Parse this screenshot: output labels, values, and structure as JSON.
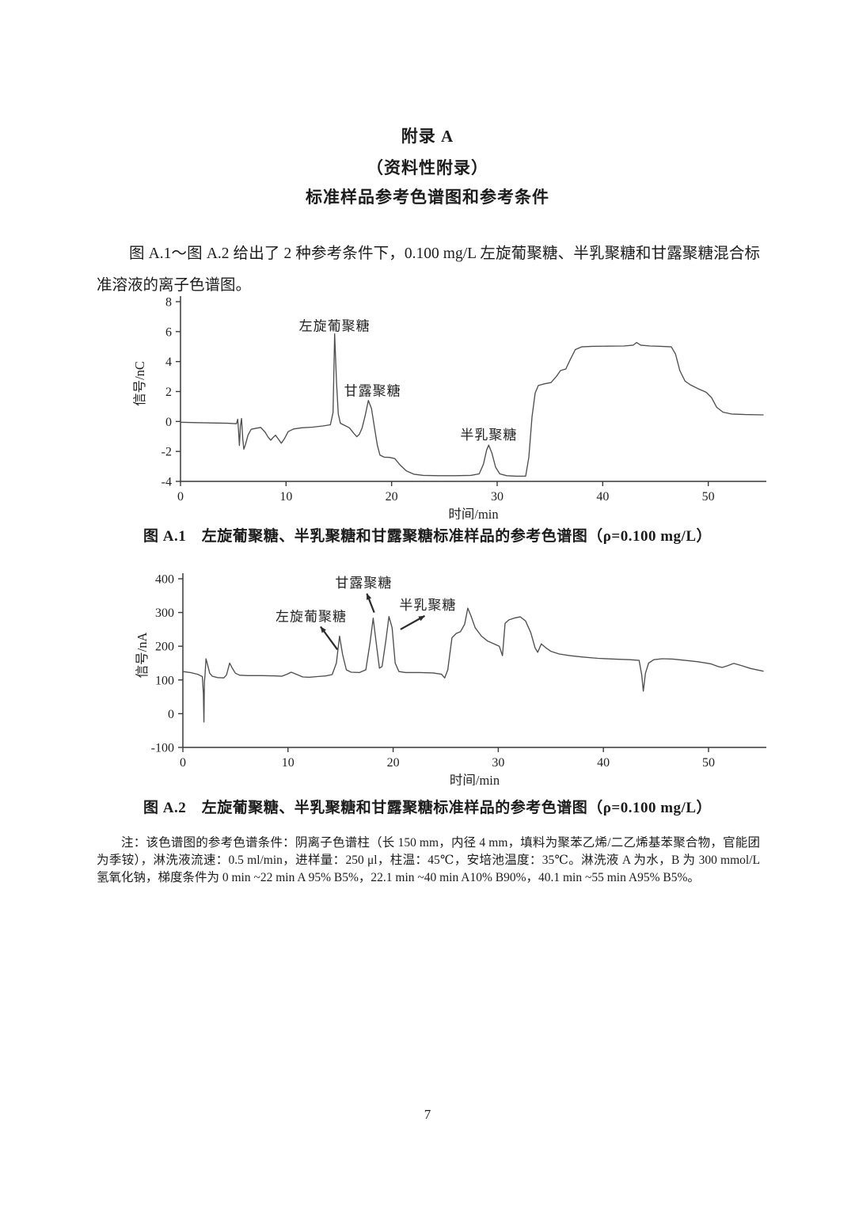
{
  "header": {
    "appendix_label": "附录 A",
    "appendix_note": "（资料性附录）",
    "title": "标准样品参考色谱图和参考条件"
  },
  "intro_paragraph": "图 A.1～图 A.2 给出了 2 种参考条件下，0.100 mg/L 左旋葡聚糖、半乳聚糖和甘露聚糖混合标准溶液的离子色谱图。",
  "figure_a1": {
    "caption": "图 A.1　左旋葡聚糖、半乳聚糖和甘露聚糖标准样品的参考色谱图（ρ=0.100 mg/L）"
  },
  "figure_a2": {
    "caption": "图 A.2　左旋葡聚糖、半乳聚糖和甘露聚糖标准样品的参考色谱图（ρ=0.100 mg/L）"
  },
  "note_text": "注：该色谱图的参考色谱条件：阴离子色谱柱（长 150 mm，内径 4 mm，填料为聚苯乙烯/二乙烯基苯聚合物，官能团为季铵），淋洗液流速：0.5 ml/min，进样量：250 μl，柱温：45℃，安培池温度：35℃。淋洗液 A 为水，B 为 300 mmol/L 氢氧化钠，梯度条件为 0 min ~22 min A 95% B5%，22.1 min ~40 min A10% B90%，40.1 min ~55 min A95% B5%。",
  "page_number": "7",
  "colors": {
    "curve": "#4f4f4f",
    "axis": "#3a3a3a",
    "annotation": "#2b2b2b"
  },
  "chart_data": [
    {
      "id": "a1",
      "type": "line",
      "title": "",
      "xlabel": "时间/min",
      "ylabel": "信号/nC",
      "xlim": [
        0,
        55.5
      ],
      "ylim": [
        -4,
        8
      ],
      "xticks": [
        0,
        10,
        20,
        30,
        40,
        50
      ],
      "yticks": [
        8,
        6,
        4,
        2,
        0,
        -2,
        -4
      ],
      "grid": false,
      "legend": null,
      "annotations": [
        {
          "label": "左旋葡聚糖",
          "x": 14.6,
          "y": 6.4,
          "arrow": null
        },
        {
          "label": "甘露聚糖",
          "x": 18.2,
          "y": 2.05,
          "arrow": null
        },
        {
          "label": "半乳聚糖",
          "x": 29.2,
          "y": -0.88,
          "arrow": null
        }
      ],
      "points": [
        [
          0,
          -0.05
        ],
        [
          1.5,
          -0.08
        ],
        [
          3,
          -0.1
        ],
        [
          4.5,
          -0.12
        ],
        [
          5.3,
          -0.15
        ],
        [
          5.42,
          0.15
        ],
        [
          5.5,
          -0.6
        ],
        [
          5.58,
          -1.6
        ],
        [
          5.68,
          -0.3
        ],
        [
          5.78,
          0.2
        ],
        [
          5.9,
          -1.2
        ],
        [
          6.0,
          -1.85
        ],
        [
          6.15,
          -1.55
        ],
        [
          6.4,
          -0.9
        ],
        [
          6.7,
          -0.52
        ],
        [
          7.2,
          -0.45
        ],
        [
          7.6,
          -0.4
        ],
        [
          8.0,
          -0.7
        ],
        [
          8.3,
          -1.05
        ],
        [
          8.55,
          -1.25
        ],
        [
          8.8,
          -1.05
        ],
        [
          9.0,
          -0.92
        ],
        [
          9.25,
          -1.15
        ],
        [
          9.55,
          -1.45
        ],
        [
          9.85,
          -1.15
        ],
        [
          10.2,
          -0.68
        ],
        [
          10.7,
          -0.5
        ],
        [
          11.5,
          -0.42
        ],
        [
          12.5,
          -0.38
        ],
        [
          13.5,
          -0.3
        ],
        [
          14.2,
          -0.22
        ],
        [
          14.45,
          0.6
        ],
        [
          14.6,
          5.85
        ],
        [
          14.78,
          2.6
        ],
        [
          14.95,
          0.5
        ],
        [
          15.15,
          -0.12
        ],
        [
          15.6,
          -0.28
        ],
        [
          16.0,
          -0.42
        ],
        [
          16.4,
          -0.78
        ],
        [
          16.7,
          -1.02
        ],
        [
          16.95,
          -0.85
        ],
        [
          17.2,
          -0.45
        ],
        [
          17.5,
          0.4
        ],
        [
          17.8,
          1.4
        ],
        [
          18.1,
          0.85
        ],
        [
          18.4,
          -0.5
        ],
        [
          18.65,
          -1.6
        ],
        [
          18.9,
          -2.25
        ],
        [
          19.3,
          -2.38
        ],
        [
          19.8,
          -2.4
        ],
        [
          20.3,
          -2.48
        ],
        [
          20.8,
          -2.9
        ],
        [
          21.4,
          -3.3
        ],
        [
          22.1,
          -3.52
        ],
        [
          23.0,
          -3.6
        ],
        [
          24.5,
          -3.62
        ],
        [
          26.0,
          -3.62
        ],
        [
          27.5,
          -3.6
        ],
        [
          28.3,
          -3.5
        ],
        [
          28.7,
          -2.85
        ],
        [
          29.0,
          -1.9
        ],
        [
          29.2,
          -1.58
        ],
        [
          29.5,
          -2.1
        ],
        [
          29.85,
          -3.05
        ],
        [
          30.25,
          -3.5
        ],
        [
          30.9,
          -3.62
        ],
        [
          31.8,
          -3.65
        ],
        [
          32.7,
          -3.65
        ],
        [
          33.0,
          -2.4
        ],
        [
          33.3,
          0.3
        ],
        [
          33.6,
          1.9
        ],
        [
          33.9,
          2.4
        ],
        [
          34.5,
          2.52
        ],
        [
          35.1,
          2.6
        ],
        [
          35.6,
          3.0
        ],
        [
          36.0,
          3.4
        ],
        [
          36.5,
          3.5
        ],
        [
          36.9,
          4.1
        ],
        [
          37.4,
          4.8
        ],
        [
          38.0,
          4.98
        ],
        [
          39.0,
          5.02
        ],
        [
          40.5,
          5.03
        ],
        [
          42.0,
          5.04
        ],
        [
          42.9,
          5.1
        ],
        [
          43.2,
          5.27
        ],
        [
          43.6,
          5.1
        ],
        [
          44.5,
          5.04
        ],
        [
          45.5,
          5.02
        ],
        [
          46.5,
          4.98
        ],
        [
          46.9,
          4.5
        ],
        [
          47.3,
          3.4
        ],
        [
          47.8,
          2.7
        ],
        [
          48.3,
          2.45
        ],
        [
          49.0,
          2.2
        ],
        [
          49.8,
          1.95
        ],
        [
          50.3,
          1.6
        ],
        [
          50.8,
          0.95
        ],
        [
          51.4,
          0.62
        ],
        [
          52.2,
          0.5
        ],
        [
          53.5,
          0.46
        ],
        [
          55.2,
          0.44
        ]
      ]
    },
    {
      "id": "a2",
      "type": "line",
      "title": "",
      "xlabel": "时间/min",
      "ylabel": "信号/nA",
      "xlim": [
        0,
        55.5
      ],
      "ylim": [
        -100,
        400
      ],
      "xticks": [
        0,
        10,
        20,
        30,
        40,
        50
      ],
      "yticks": [
        400,
        300,
        200,
        100,
        0,
        -100
      ],
      "grid": false,
      "legend": null,
      "annotations": [
        {
          "label": "左旋葡聚糖",
          "x": 12.2,
          "y": 288,
          "arrow": {
            "from": [
              14.7,
              190
            ],
            "to": [
              13.1,
              258
            ]
          }
        },
        {
          "label": "甘露聚糖",
          "x": 17.2,
          "y": 388,
          "arrow": {
            "from": [
              18.2,
              300
            ],
            "to": [
              17.5,
              356
            ]
          }
        },
        {
          "label": "半乳聚糖",
          "x": 23.3,
          "y": 322,
          "arrow": {
            "from": [
              20.7,
              250
            ],
            "to": [
              23.0,
              290
            ]
          }
        }
      ],
      "points": [
        [
          0,
          125
        ],
        [
          0.7,
          122
        ],
        [
          1.4,
          117
        ],
        [
          1.85,
          110
        ],
        [
          1.95,
          60
        ],
        [
          2.0,
          -25
        ],
        [
          2.05,
          95
        ],
        [
          2.1,
          112
        ],
        [
          2.2,
          163
        ],
        [
          2.35,
          145
        ],
        [
          2.55,
          120
        ],
        [
          2.8,
          111
        ],
        [
          3.3,
          107
        ],
        [
          3.9,
          106
        ],
        [
          4.15,
          115
        ],
        [
          4.45,
          150
        ],
        [
          4.7,
          135
        ],
        [
          5.0,
          120
        ],
        [
          5.4,
          114
        ],
        [
          6.2,
          113
        ],
        [
          7.5,
          113
        ],
        [
          8.8,
          112
        ],
        [
          9.4,
          111
        ],
        [
          9.9,
          117
        ],
        [
          10.3,
          123
        ],
        [
          10.8,
          117
        ],
        [
          11.4,
          109
        ],
        [
          12.0,
          108
        ],
        [
          12.8,
          110
        ],
        [
          13.6,
          112
        ],
        [
          14.2,
          116
        ],
        [
          14.6,
          150
        ],
        [
          14.9,
          230
        ],
        [
          15.2,
          175
        ],
        [
          15.55,
          130
        ],
        [
          16.0,
          123
        ],
        [
          16.8,
          122
        ],
        [
          17.4,
          130
        ],
        [
          17.8,
          210
        ],
        [
          18.1,
          283
        ],
        [
          18.45,
          195
        ],
        [
          18.7,
          135
        ],
        [
          18.95,
          140
        ],
        [
          19.3,
          215
        ],
        [
          19.6,
          288
        ],
        [
          19.9,
          255
        ],
        [
          20.2,
          150
        ],
        [
          20.55,
          125
        ],
        [
          21.2,
          122
        ],
        [
          22.5,
          122
        ],
        [
          23.8,
          121
        ],
        [
          24.6,
          117
        ],
        [
          24.9,
          106
        ],
        [
          25.2,
          130
        ],
        [
          25.6,
          225
        ],
        [
          26.0,
          238
        ],
        [
          26.4,
          243
        ],
        [
          26.8,
          265
        ],
        [
          27.1,
          313
        ],
        [
          27.4,
          290
        ],
        [
          27.8,
          255
        ],
        [
          28.4,
          230
        ],
        [
          29.0,
          215
        ],
        [
          29.6,
          207
        ],
        [
          30.1,
          200
        ],
        [
          30.4,
          172
        ],
        [
          30.65,
          268
        ],
        [
          31.0,
          278
        ],
        [
          31.6,
          284
        ],
        [
          32.1,
          287
        ],
        [
          32.6,
          275
        ],
        [
          33.1,
          240
        ],
        [
          33.5,
          195
        ],
        [
          33.75,
          182
        ],
        [
          34.1,
          207
        ],
        [
          34.5,
          196
        ],
        [
          35.0,
          185
        ],
        [
          35.8,
          177
        ],
        [
          36.8,
          172
        ],
        [
          38.0,
          168
        ],
        [
          39.5,
          164
        ],
        [
          41.0,
          162
        ],
        [
          42.5,
          160
        ],
        [
          43.4,
          158
        ],
        [
          43.65,
          115
        ],
        [
          43.8,
          67
        ],
        [
          44.0,
          120
        ],
        [
          44.3,
          150
        ],
        [
          44.8,
          160
        ],
        [
          45.6,
          163
        ],
        [
          46.6,
          162
        ],
        [
          47.8,
          158
        ],
        [
          49.0,
          154
        ],
        [
          50.2,
          148
        ],
        [
          50.9,
          140
        ],
        [
          51.3,
          137
        ],
        [
          51.8,
          142
        ],
        [
          52.4,
          149
        ],
        [
          53.1,
          143
        ],
        [
          54.0,
          134
        ],
        [
          55.2,
          126
        ]
      ]
    }
  ]
}
